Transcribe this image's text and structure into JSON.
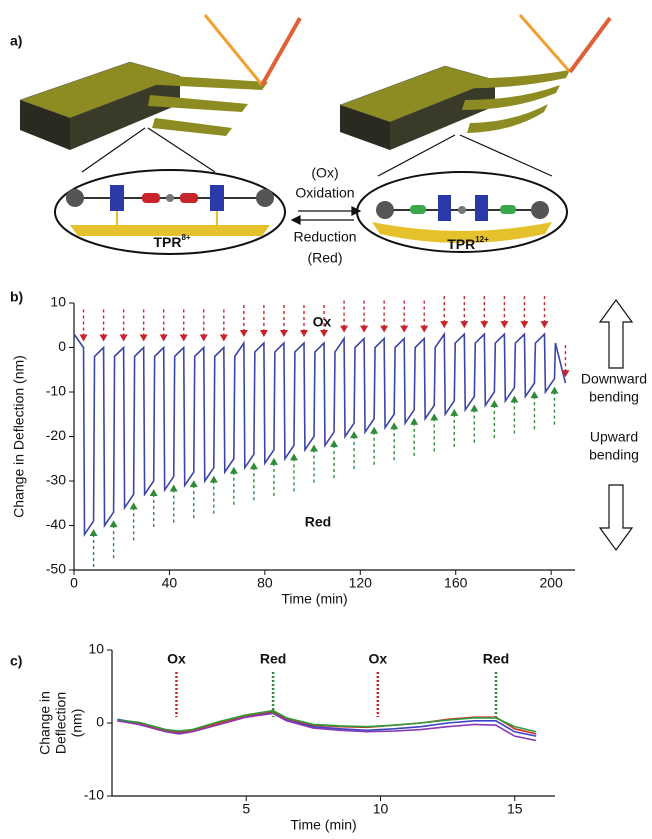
{
  "labels": [
    "a)",
    "b)",
    "c)"
  ],
  "diagram": {
    "ox_abbrev": "(Ox)",
    "oxidation": "Oxidation",
    "reduction": "Reduction",
    "red_abbrev": "(Red)",
    "left_state": {
      "base": "TPR",
      "charge": "8+"
    },
    "right_state": {
      "base": "TPR",
      "charge": "12+"
    }
  },
  "chart_data": [
    {
      "type": "line",
      "xlabel": "Time (min)",
      "ylabel": "Change in Deflection (nm)",
      "xlim": [
        0,
        210
      ],
      "ylim": [
        -50,
        10
      ],
      "xticks": [
        0,
        40,
        80,
        120,
        160,
        200
      ],
      "yticks": [
        -50,
        -40,
        -30,
        -20,
        -10,
        0,
        10
      ],
      "x": [
        0,
        4,
        4.4,
        8.2,
        8.6,
        12.4,
        12.8,
        16.6,
        17,
        20.8,
        21.2,
        25,
        25.4,
        29.2,
        29.6,
        33.4,
        33.8,
        37.6,
        38,
        41.8,
        42.2,
        46,
        46.4,
        50.2,
        50.6,
        54.4,
        54.8,
        58.6,
        59,
        62.8,
        63.2,
        67,
        67.4,
        71.2,
        71.6,
        75.4,
        75.8,
        79.6,
        80,
        83.8,
        84.2,
        88,
        88.4,
        92.2,
        92.6,
        96.4,
        96.8,
        100.6,
        101,
        104.8,
        105.2,
        109,
        109.4,
        113.2,
        113.6,
        117.4,
        117.8,
        121.6,
        122,
        125.8,
        126.2,
        130,
        130.4,
        134.2,
        134.6,
        138.4,
        138.8,
        142.6,
        143,
        146.8,
        147.2,
        151,
        151.4,
        155.2,
        155.6,
        159.4,
        159.8,
        163.6,
        164,
        167.8,
        168.2,
        172,
        172.4,
        176.2,
        176.6,
        180.4,
        180.8,
        184.6,
        185,
        188.8,
        189.2,
        193,
        193.4,
        197.2,
        197.6,
        201.4,
        201.8,
        206
      ],
      "series": [
        {
          "color": "#3b44a8",
          "values": [
            3,
            0,
            -42,
            -39,
            -2,
            0,
            -40,
            -37,
            -2,
            0,
            -36,
            -33,
            -2,
            0,
            -33,
            -30,
            -2,
            0,
            -32,
            -29,
            -2,
            0,
            -31,
            -28,
            -2,
            0,
            -30,
            -27,
            -2,
            0,
            -28,
            -25,
            -2,
            1,
            -27,
            -24,
            -1,
            1,
            -26,
            -23,
            -1,
            1,
            -25,
            -22,
            -1,
            1,
            -23,
            -20,
            -1,
            1,
            -22,
            -19,
            -1,
            2,
            -20,
            -17,
            0,
            2,
            -19,
            -16,
            0,
            2,
            -18,
            -15,
            0,
            2,
            -17,
            -14,
            0,
            2,
            -16,
            -13,
            0,
            3,
            -15,
            -12,
            1,
            3,
            -14,
            -11,
            1,
            3,
            -13,
            -10,
            1,
            3,
            -12,
            -9,
            1,
            3,
            -11,
            -8,
            1,
            3,
            -10,
            -7,
            1,
            -8
          ]
        }
      ],
      "annotations": [
        {
          "text": "Ox",
          "color": "#c8242b"
        },
        {
          "text": "Red",
          "color": "#2f8a3a"
        }
      ],
      "side_labels": [
        [
          "Downward",
          "bending"
        ],
        [
          "Upward",
          "bending"
        ]
      ]
    },
    {
      "type": "line",
      "xlabel": "Time (min)",
      "ylabel": [
        "Change in",
        "Deflection",
        "(nm)"
      ],
      "xlim": [
        0,
        16.5
      ],
      "ylim": [
        -10,
        10
      ],
      "xticks": [
        5,
        10,
        15
      ],
      "yticks": [
        -10,
        0,
        10
      ],
      "x": [
        0.2,
        1,
        2,
        2.5,
        3,
        4,
        5,
        6,
        6.5,
        7.5,
        8.5,
        9.5,
        10.5,
        11.5,
        12.5,
        13.5,
        14.3,
        15,
        15.8
      ],
      "series": [
        {
          "color": "#3b44c8",
          "values": [
            0.5,
            0,
            -1,
            -1.3,
            -1,
            0,
            1,
            1.5,
            0.5,
            -0.5,
            -0.8,
            -1,
            -0.8,
            -0.5,
            0,
            0.3,
            0.3,
            -1.2,
            -1.8
          ]
        },
        {
          "color": "#d0342c",
          "values": [
            0.3,
            0,
            -1,
            -1.2,
            -1,
            0,
            1,
            1.6,
            0.6,
            -0.3,
            -0.5,
            -0.6,
            -0.3,
            0,
            0.5,
            0.8,
            0.8,
            -0.8,
            -1.5
          ]
        },
        {
          "color": "#2f9a3a",
          "values": [
            0.4,
            0.1,
            -0.9,
            -1.1,
            -0.9,
            0.2,
            1.1,
            1.7,
            0.7,
            -0.2,
            -0.4,
            -0.5,
            -0.3,
            0,
            0.4,
            0.7,
            0.7,
            -0.5,
            -1.2
          ]
        },
        {
          "color": "#8a3ab0",
          "values": [
            0.3,
            -0.2,
            -1.2,
            -1.5,
            -1.2,
            -0.2,
            0.8,
            1.3,
            0.3,
            -0.7,
            -1,
            -1.2,
            -1.1,
            -0.9,
            -0.5,
            -0.2,
            -0.3,
            -1.8,
            -2.4
          ]
        }
      ],
      "events": [
        {
          "text": "Ox",
          "x": 2.4,
          "color": "#c8242b"
        },
        {
          "text": "Red",
          "x": 6.0,
          "color": "#2f8a3a"
        },
        {
          "text": "Ox",
          "x": 9.9,
          "color": "#c8242b"
        },
        {
          "text": "Red",
          "x": 14.3,
          "color": "#2f8a3a"
        }
      ]
    }
  ]
}
